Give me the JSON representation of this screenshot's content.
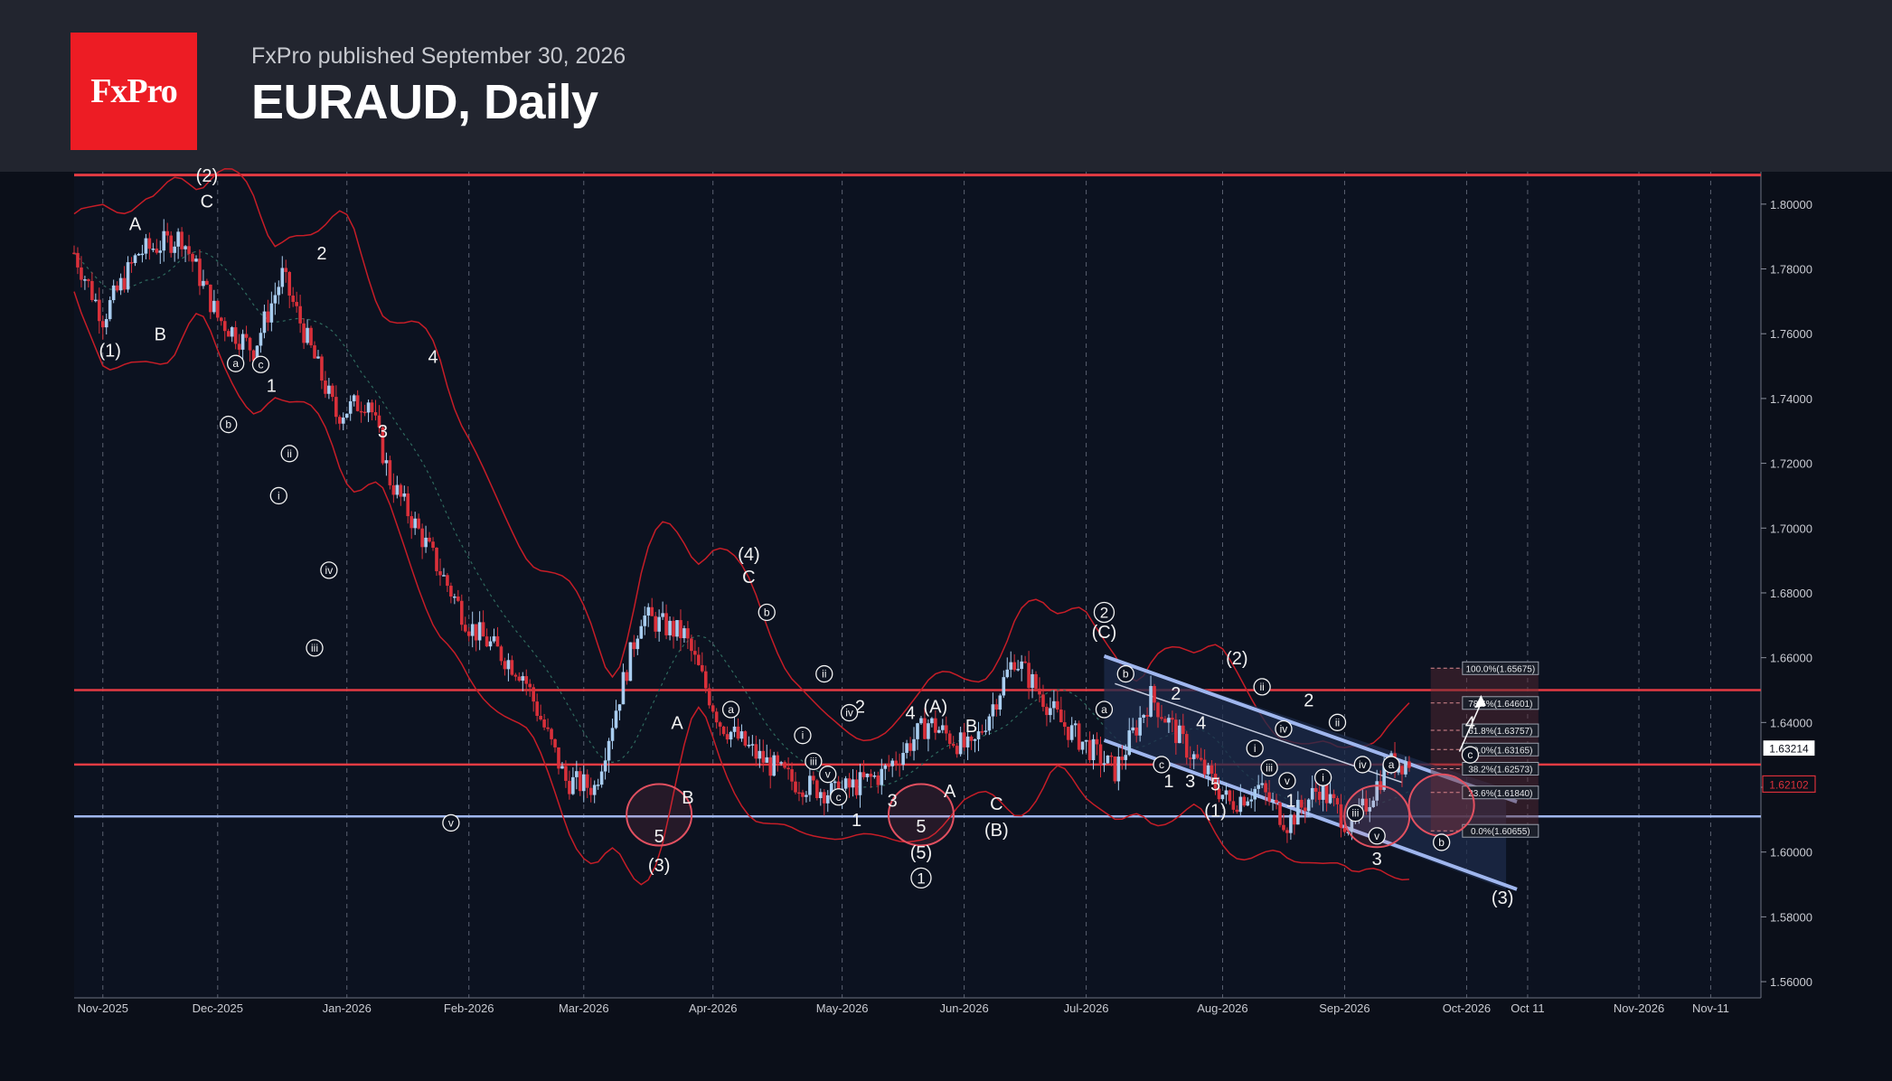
{
  "header": {
    "logo_text": "FxPro",
    "subtitle": "FxPro published September 30, 2026",
    "title": "EURAUD, Daily"
  },
  "colors": {
    "background": "#0b0f19",
    "header": "#22252f",
    "logo": "#ed1c24",
    "bull_candle": "#a9cdf0",
    "bear_candle": "#d9303a",
    "band": "#c61d27",
    "resistance": "#e43b43",
    "support": "#9fb6ee",
    "channel": "#9fb6ee",
    "price_tag": "#d9303a"
  },
  "chart_data": {
    "type": "candlestick",
    "ylim": [
      1.555,
      1.81
    ],
    "y_ticks": [
      "1.80000",
      "1.78000",
      "1.76000",
      "1.74000",
      "1.72000",
      "1.70000",
      "1.68000",
      "1.66000",
      "1.64000",
      "1.62000",
      "1.60000",
      "1.58000",
      "1.56000"
    ],
    "x_ticks": [
      "Nov-2025",
      "Dec-2025",
      "Jan-2026",
      "Feb-2026",
      "Mar-2026",
      "Apr-2026",
      "May-2026",
      "Jun-2026",
      "Jul-2026",
      "Aug-2026",
      "Sep-2026",
      "Oct-2026",
      "Oct 11",
      "Nov-2026",
      "Nov-11"
    ],
    "close_path": [
      [
        0,
        1.785
      ],
      [
        8,
        1.765
      ],
      [
        18,
        1.785
      ],
      [
        30,
        1.79
      ],
      [
        40,
        1.765
      ],
      [
        50,
        1.755
      ],
      [
        58,
        1.778
      ],
      [
        66,
        1.755
      ],
      [
        73,
        1.735
      ],
      [
        82,
        1.74
      ],
      [
        88,
        1.715
      ],
      [
        98,
        1.695
      ],
      [
        110,
        1.67
      ],
      [
        125,
        1.655
      ],
      [
        137,
        1.622
      ],
      [
        145,
        1.62
      ],
      [
        158,
        1.673
      ],
      [
        170,
        1.667
      ],
      [
        180,
        1.64
      ],
      [
        190,
        1.63
      ],
      [
        200,
        1.622
      ],
      [
        212,
        1.618
      ],
      [
        225,
        1.624
      ],
      [
        238,
        1.64
      ],
      [
        250,
        1.631
      ],
      [
        262,
        1.66
      ],
      [
        275,
        1.64
      ],
      [
        290,
        1.625
      ],
      [
        300,
        1.648
      ],
      [
        310,
        1.632
      ],
      [
        322,
        1.615
      ],
      [
        330,
        1.62
      ],
      [
        338,
        1.609
      ],
      [
        347,
        1.62
      ],
      [
        356,
        1.607
      ],
      [
        366,
        1.627
      ],
      [
        372,
        1.628
      ]
    ],
    "price_tags": [
      "1.63214",
      "1.62102"
    ],
    "horizontal_levels": [
      1.809,
      1.65,
      1.627,
      1.611
    ],
    "fibonacci": [
      {
        "label": "100.0%(1.65675)",
        "value": 1.65675
      },
      {
        "label": "78.6%(1.64601)",
        "value": 1.64601
      },
      {
        "label": "61.8%(1.63757)",
        "value": 1.63757
      },
      {
        "label": "50.0%(1.63165)",
        "value": 1.63165
      },
      {
        "label": "38.2%(1.62573)",
        "value": 1.62573
      },
      {
        "label": "23.6%(1.61840)",
        "value": 1.6184
      },
      {
        "label": "0.0%(1.60655)",
        "value": 1.60655
      }
    ],
    "wave_labels": [
      {
        "t": "(1)",
        "d": 10,
        "v": 1.753
      },
      {
        "t": "A",
        "d": 17,
        "v": 1.792
      },
      {
        "t": "B",
        "d": 24,
        "v": 1.758
      },
      {
        "t": "C",
        "d": 37,
        "v": 1.799
      },
      {
        "t": "(2)",
        "d": 37,
        "v": 1.807
      },
      {
        "t": "1",
        "d": 55,
        "v": 1.742
      },
      {
        "t": "2",
        "d": 69,
        "v": 1.783
      },
      {
        "t": "3",
        "d": 86,
        "v": 1.728
      },
      {
        "t": "4",
        "d": 100,
        "v": 1.751
      },
      {
        "t": "(3)",
        "d": 163,
        "v": 1.594
      },
      {
        "t": "5",
        "d": 163,
        "v": 1.603
      },
      {
        "t": "A",
        "d": 168,
        "v": 1.638
      },
      {
        "t": "B",
        "d": 171,
        "v": 1.615
      },
      {
        "t": "(4)",
        "d": 188,
        "v": 1.69
      },
      {
        "t": "C",
        "d": 188,
        "v": 1.683
      },
      {
        "t": "2",
        "d": 219,
        "v": 1.643
      },
      {
        "t": "1",
        "d": 218,
        "v": 1.608
      },
      {
        "t": "3",
        "d": 228,
        "v": 1.614
      },
      {
        "t": "4",
        "d": 233,
        "v": 1.641
      },
      {
        "t": "(5)",
        "d": 236,
        "v": 1.598
      },
      {
        "t": "5",
        "d": 236,
        "v": 1.606
      },
      {
        "t": "A",
        "d": 244,
        "v": 1.617
      },
      {
        "t": "(A)",
        "d": 240,
        "v": 1.643
      },
      {
        "t": "B",
        "d": 250,
        "v": 1.637
      },
      {
        "t": "C",
        "d": 257,
        "v": 1.613
      },
      {
        "t": "(B)",
        "d": 257,
        "v": 1.605
      },
      {
        "t": "(C)",
        "d": 287,
        "v": 1.666
      },
      {
        "t": "2",
        "d": 307,
        "v": 1.647
      },
      {
        "t": "4",
        "d": 314,
        "v": 1.638
      },
      {
        "t": "1",
        "d": 305,
        "v": 1.62
      },
      {
        "t": "3",
        "d": 311,
        "v": 1.62
      },
      {
        "t": "5",
        "d": 318,
        "v": 1.619
      },
      {
        "t": "(1)",
        "d": 318,
        "v": 1.611
      },
      {
        "t": "(2)",
        "d": 324,
        "v": 1.658
      },
      {
        "t": "1",
        "d": 339,
        "v": 1.614
      },
      {
        "t": "2",
        "d": 344,
        "v": 1.645
      },
      {
        "t": "3",
        "d": 363,
        "v": 1.596
      },
      {
        "t": "4",
        "d": 389,
        "v": 1.638
      },
      {
        "t": "(3)",
        "d": 398,
        "v": 1.584
      }
    ],
    "circled_labels": [
      {
        "t": "a",
        "d": 45,
        "v": 1.7508
      },
      {
        "t": "c",
        "d": 52,
        "v": 1.7505
      },
      {
        "t": "b",
        "d": 43,
        "v": 1.732
      },
      {
        "t": "ii",
        "d": 60,
        "v": 1.723
      },
      {
        "t": "i",
        "d": 57,
        "v": 1.71
      },
      {
        "t": "iv",
        "d": 71,
        "v": 1.687
      },
      {
        "t": "iii",
        "d": 67,
        "v": 1.663
      },
      {
        "t": "v",
        "d": 105,
        "v": 1.609
      },
      {
        "t": "b",
        "d": 193,
        "v": 1.674
      },
      {
        "t": "ii",
        "d": 209,
        "v": 1.655
      },
      {
        "t": "iv",
        "d": 216,
        "v": 1.643
      },
      {
        "t": "a",
        "d": 183,
        "v": 1.644
      },
      {
        "t": "i",
        "d": 203,
        "v": 1.636
      },
      {
        "t": "iii",
        "d": 206,
        "v": 1.628
      },
      {
        "t": "v",
        "d": 210,
        "v": 1.624
      },
      {
        "t": "c",
        "d": 213,
        "v": 1.617
      },
      {
        "t": "1",
        "d": 236,
        "v": 1.592
      },
      {
        "t": "2",
        "d": 287,
        "v": 1.674
      },
      {
        "t": "b",
        "d": 293,
        "v": 1.655
      },
      {
        "t": "a",
        "d": 287,
        "v": 1.644
      },
      {
        "t": "c",
        "d": 303,
        "v": 1.627
      },
      {
        "t": "ii",
        "d": 331,
        "v": 1.651
      },
      {
        "t": "iv",
        "d": 337,
        "v": 1.638
      },
      {
        "t": "i",
        "d": 329,
        "v": 1.632
      },
      {
        "t": "iii",
        "d": 333,
        "v": 1.626
      },
      {
        "t": "v",
        "d": 338,
        "v": 1.622
      },
      {
        "t": "i",
        "d": 348,
        "v": 1.623
      },
      {
        "t": "ii",
        "d": 352,
        "v": 1.64
      },
      {
        "t": "iv",
        "d": 359,
        "v": 1.627
      },
      {
        "t": "iii",
        "d": 357,
        "v": 1.612
      },
      {
        "t": "v",
        "d": 363,
        "v": 1.605
      },
      {
        "t": "a",
        "d": 367,
        "v": 1.627
      },
      {
        "t": "b",
        "d": 381,
        "v": 1.603
      },
      {
        "t": "c",
        "d": 389,
        "v": 1.63
      }
    ]
  }
}
